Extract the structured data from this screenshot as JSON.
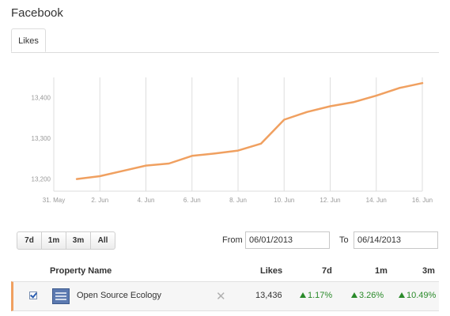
{
  "app": {
    "title": "Facebook"
  },
  "tabs": [
    {
      "label": "Likes"
    }
  ],
  "chart_data": {
    "type": "line",
    "title": "",
    "xlabel": "",
    "ylabel": "",
    "x_ticks": [
      "31. May",
      "2. Jun",
      "4. Jun",
      "6. Jun",
      "8. Jun",
      "10. Jun",
      "12. Jun",
      "14. Jun",
      "16. Jun"
    ],
    "y_ticks": [
      13200,
      13300,
      13400
    ],
    "y_tick_labels": [
      "13,200",
      "13,300",
      "13,400"
    ],
    "ylim": [
      13170,
      13450
    ],
    "xlim": [
      "2013-05-31",
      "2013-06-16"
    ],
    "series": [
      {
        "color": "#f0a060",
        "points": [
          {
            "x": "2013-06-01",
            "y": 13200
          },
          {
            "x": "2013-06-02",
            "y": 13207
          },
          {
            "x": "2013-06-03",
            "y": 13220
          },
          {
            "x": "2013-06-04",
            "y": 13233
          },
          {
            "x": "2013-06-05",
            "y": 13238
          },
          {
            "x": "2013-06-06",
            "y": 13257
          },
          {
            "x": "2013-06-07",
            "y": 13263
          },
          {
            "x": "2013-06-08",
            "y": 13270
          },
          {
            "x": "2013-06-09",
            "y": 13287
          },
          {
            "x": "2013-06-10",
            "y": 13346
          },
          {
            "x": "2013-06-11",
            "y": 13365
          },
          {
            "x": "2013-06-12",
            "y": 13379
          },
          {
            "x": "2013-06-13",
            "y": 13389
          },
          {
            "x": "2013-06-14",
            "y": 13405
          },
          {
            "x": "2013-06-15",
            "y": 13424
          },
          {
            "x": "2013-06-16",
            "y": 13436
          }
        ]
      }
    ],
    "grid": "vertical",
    "axis_color": "#dddddd",
    "label_color": "#999999"
  },
  "range_buttons": [
    {
      "label": "7d"
    },
    {
      "label": "1m"
    },
    {
      "label": "3m"
    },
    {
      "label": "All"
    }
  ],
  "date_range": {
    "from_label": "From",
    "from_value": "06/01/2013",
    "to_label": "To",
    "to_value": "06/14/2013"
  },
  "table": {
    "headers": {
      "name": "Property Name",
      "likes": "Likes",
      "d7": "7d",
      "m1": "1m",
      "m3": "3m"
    },
    "rows": [
      {
        "checked": true,
        "name": "Open Source Ecology",
        "likes": "13,436",
        "d7": "1.17%",
        "m1": "3.26%",
        "m3": "10.49%"
      }
    ]
  }
}
